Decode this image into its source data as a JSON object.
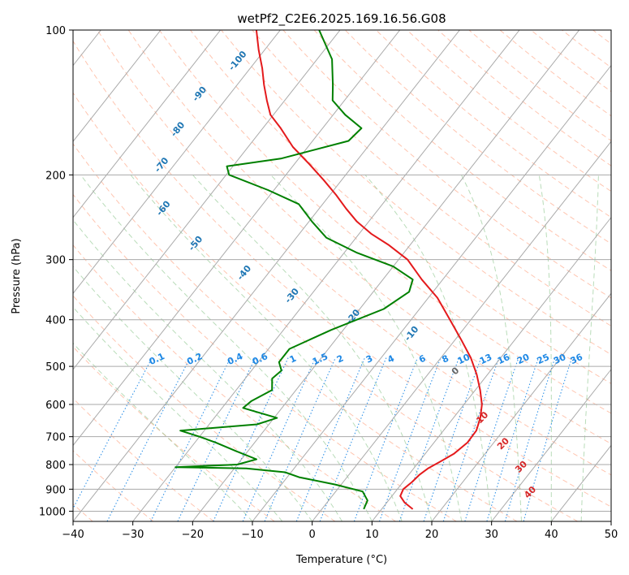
{
  "chart_data": {
    "type": "line",
    "subtype": "skew-T log-P diagram",
    "title": "wetPf2_C2E6.2025.169.16.56.G08",
    "xlabel": "Temperature (°C)",
    "ylabel": "Pressure (hPa)",
    "xlim": [
      -40,
      50
    ],
    "ylim": [
      1050,
      100
    ],
    "y_scale": "log",
    "grid": true,
    "x_ticks": [
      "−40",
      "−30",
      "−20",
      "−10",
      "0",
      "10",
      "20",
      "30",
      "40",
      "50"
    ],
    "y_ticks": [
      "100",
      "200",
      "300",
      "400",
      "500",
      "600",
      "700",
      "800",
      "900",
      "1000"
    ],
    "series": [
      {
        "role": "temperature",
        "color": "#e41a1c",
        "points": [
          {
            "p": 990,
            "t": 15.2
          },
          {
            "p": 960,
            "t": 13.0
          },
          {
            "p": 930,
            "t": 11.4
          },
          {
            "p": 900,
            "t": 11.0
          },
          {
            "p": 870,
            "t": 11.5
          },
          {
            "p": 840,
            "t": 11.8
          },
          {
            "p": 815,
            "t": 12.4
          },
          {
            "p": 790,
            "t": 13.5
          },
          {
            "p": 760,
            "t": 14.8
          },
          {
            "p": 720,
            "t": 15.6
          },
          {
            "p": 680,
            "t": 15.5
          },
          {
            "p": 640,
            "t": 14.5
          },
          {
            "p": 600,
            "t": 13.0
          },
          {
            "p": 560,
            "t": 10.8
          },
          {
            "p": 520,
            "t": 8.2
          },
          {
            "p": 480,
            "t": 5.0
          },
          {
            "p": 440,
            "t": 1.0
          },
          {
            "p": 400,
            "t": -3.5
          },
          {
            "p": 360,
            "t": -8.5
          },
          {
            "p": 330,
            "t": -13.5
          },
          {
            "p": 300,
            "t": -18.5
          },
          {
            "p": 280,
            "t": -23.5
          },
          {
            "p": 265,
            "t": -28.0
          },
          {
            "p": 250,
            "t": -32.0
          },
          {
            "p": 235,
            "t": -35.5
          },
          {
            "p": 220,
            "t": -39.0
          },
          {
            "p": 205,
            "t": -43.0
          },
          {
            "p": 190,
            "t": -47.5
          },
          {
            "p": 175,
            "t": -52.5
          },
          {
            "p": 160,
            "t": -57.0
          },
          {
            "p": 150,
            "t": -60.5
          },
          {
            "p": 140,
            "t": -63.0
          },
          {
            "p": 130,
            "t": -65.5
          },
          {
            "p": 120,
            "t": -68.0
          },
          {
            "p": 110,
            "t": -71.0
          },
          {
            "p": 100,
            "t": -74.0
          }
        ]
      },
      {
        "role": "dewpoint",
        "color": "#008000",
        "points": [
          {
            "p": 990,
            "t": 7.0
          },
          {
            "p": 950,
            "t": 6.5
          },
          {
            "p": 910,
            "t": 4.5
          },
          {
            "p": 880,
            "t": -1.0
          },
          {
            "p": 850,
            "t": -8.0
          },
          {
            "p": 830,
            "t": -11.0
          },
          {
            "p": 815,
            "t": -18.0
          },
          {
            "p": 810,
            "t": -30.0
          },
          {
            "p": 800,
            "t": -20.0
          },
          {
            "p": 780,
            "t": -17.5
          },
          {
            "p": 750,
            "t": -22.0
          },
          {
            "p": 720,
            "t": -26.5
          },
          {
            "p": 700,
            "t": -30.0
          },
          {
            "p": 680,
            "t": -34.0
          },
          {
            "p": 660,
            "t": -22.0
          },
          {
            "p": 640,
            "t": -19.5
          },
          {
            "p": 610,
            "t": -26.5
          },
          {
            "p": 590,
            "t": -26.0
          },
          {
            "p": 560,
            "t": -24.0
          },
          {
            "p": 530,
            "t": -25.5
          },
          {
            "p": 510,
            "t": -25.0
          },
          {
            "p": 490,
            "t": -26.5
          },
          {
            "p": 460,
            "t": -26.5
          },
          {
            "p": 420,
            "t": -22.0
          },
          {
            "p": 380,
            "t": -16.0
          },
          {
            "p": 350,
            "t": -14.0
          },
          {
            "p": 330,
            "t": -15.0
          },
          {
            "p": 310,
            "t": -20.0
          },
          {
            "p": 290,
            "t": -28.0
          },
          {
            "p": 270,
            "t": -35.0
          },
          {
            "p": 250,
            "t": -39.5
          },
          {
            "p": 230,
            "t": -44.0
          },
          {
            "p": 215,
            "t": -51.0
          },
          {
            "p": 200,
            "t": -59.5
          },
          {
            "p": 192,
            "t": -61.0
          },
          {
            "p": 185,
            "t": -53.0
          },
          {
            "p": 170,
            "t": -44.0
          },
          {
            "p": 160,
            "t": -43.5
          },
          {
            "p": 150,
            "t": -48.0
          },
          {
            "p": 140,
            "t": -52.0
          },
          {
            "p": 130,
            "t": -54.0
          },
          {
            "p": 115,
            "t": -57.5
          },
          {
            "p": 100,
            "t": -63.5
          }
        ]
      }
    ],
    "dry_adiabat_labels": [
      "-100",
      "-90",
      "-80",
      "-70",
      "-60",
      "-50",
      "-40",
      "-30",
      "-20",
      "-10"
    ],
    "moist_adiabat_labels": [
      "0",
      "10",
      "20",
      "30",
      "40"
    ],
    "mixing_ratio_labels": [
      "0.1",
      "0.2",
      "0.4",
      "0.6",
      "1",
      "1.5",
      "2",
      "3",
      "4",
      "6",
      "8",
      "10",
      "13",
      "16",
      "20",
      "25",
      "30",
      "36"
    ],
    "colors": {
      "temperature": "#e41a1c",
      "dewpoint": "#008000",
      "dry_adiabat_labels": "#1f77b4",
      "moist_adiabat_labels": "#d62728",
      "mixing_ratio": "#1e88e5",
      "isotherm_grid": "#aaaaaa",
      "dry_adiabat_lines": "#ff7f50",
      "moist_adiabat_lines": "#7fbf7f"
    }
  }
}
